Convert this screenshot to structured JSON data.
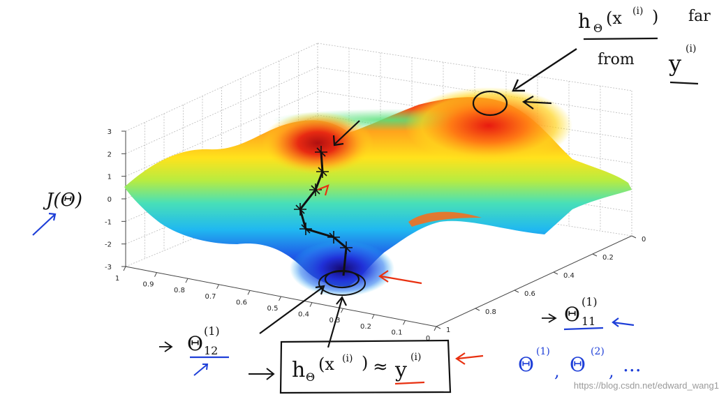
{
  "chart_data": {
    "type": "surface",
    "z_axis": {
      "label": "J(Θ)",
      "range": [
        -3,
        3
      ],
      "ticks": [
        "3",
        "2",
        "1",
        "0",
        "-1",
        "-2",
        "-3"
      ]
    },
    "x_axis": {
      "label_base": "Θ",
      "label_sup": "(1)",
      "label_sub": "12",
      "range": [
        1,
        0
      ],
      "ticks": [
        "1",
        "0.9",
        "0.8",
        "0.7",
        "0.6",
        "0.5",
        "0.4",
        "0.3",
        "0.2",
        "0.1",
        "0"
      ]
    },
    "y_axis": {
      "label_base": "Θ",
      "label_sup": "(1)",
      "label_sub": "11",
      "range": [
        0,
        1
      ],
      "ticks": [
        "0",
        "0.2",
        "0.4",
        "0.6",
        "0.8",
        "1"
      ]
    },
    "colormap": [
      "#1a0a8c",
      "#1f5be8",
      "#20b8f0",
      "#48e0b8",
      "#b8ec40",
      "#ffe21c",
      "#ff9a1c",
      "#f02818"
    ],
    "grid": true
  },
  "annotations": {
    "peak_note_h": "h",
    "peak_note_theta": "Θ",
    "peak_note_x": "(x",
    "peak_note_i": "(i)",
    "peak_note_close": ")",
    "peak_note_far": "far",
    "peak_note_from": "from",
    "peak_note_y": "y",
    "peak_note_yi": "(i)",
    "box_h": "h",
    "box_theta": "Θ",
    "box_x": "(x",
    "box_i": "(i)",
    "box_close": ")",
    "box_approx": "≈",
    "box_y": "y",
    "box_yi": "(i)",
    "list_theta1": "Θ",
    "list_sup1": "(1)",
    "list_comma1": ",",
    "list_theta2": "Θ",
    "list_sup2": "(2)",
    "list_comma2": ",",
    "list_dots": "..."
  },
  "watermark": "https://blog.csdn.net/edward_wang1"
}
